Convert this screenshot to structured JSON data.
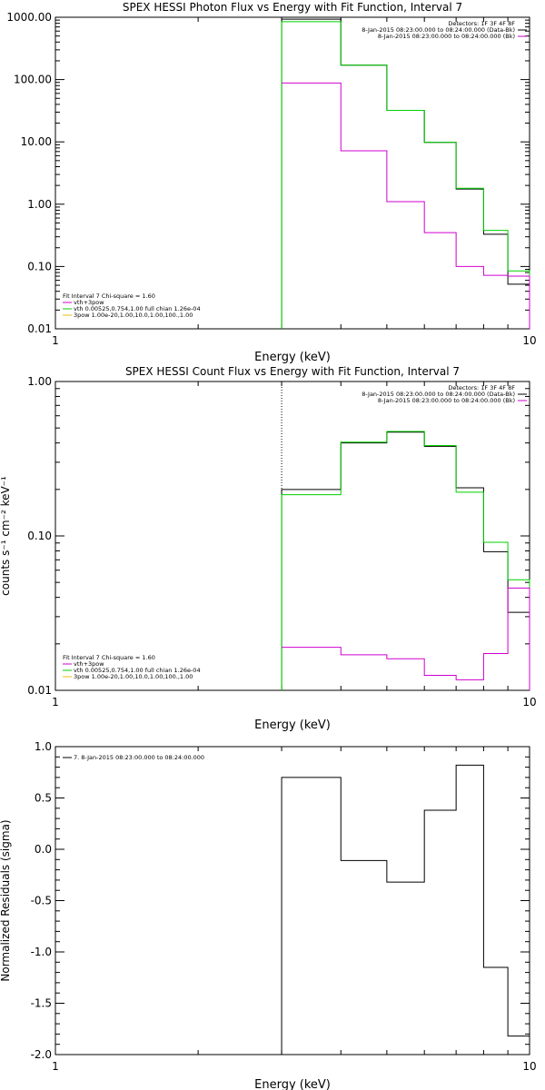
{
  "chart_data": [
    {
      "type": "line",
      "title": "SPEX HESSI Photon Flux vs Energy with Fit Function, Interval 7",
      "xlabel": "Energy (keV)",
      "ylabel": "",
      "xscale": "log",
      "yscale": "log",
      "xlim": [
        1,
        10
      ],
      "ylim": [
        0.01,
        1000
      ],
      "xticks": [
        {
          "value": 1,
          "label": "1"
        },
        {
          "value": 10,
          "label": "10"
        }
      ],
      "yticks": [
        {
          "value": 0.01,
          "label": "0.01"
        },
        {
          "value": 0.1,
          "label": "0.10"
        },
        {
          "value": 1,
          "label": "1.00"
        },
        {
          "value": 10,
          "label": "10.00"
        },
        {
          "value": 100,
          "label": "100.00"
        },
        {
          "value": 1000,
          "label": "1000.00"
        }
      ],
      "vline": {
        "x": 3.0,
        "style": "dotted"
      },
      "edges": [
        3.0,
        4.0,
        5.0,
        6.0,
        7.0,
        8.0,
        9.0,
        10.0
      ],
      "series": [
        {
          "color": "#000000",
          "values": [
            930,
            170,
            32,
            9.8,
            1.75,
            0.33,
            0.052
          ],
          "fill_down": true
        },
        {
          "color": "#00d000",
          "values": [
            850,
            170,
            32,
            9.8,
            1.8,
            0.38,
            0.085
          ],
          "fill_down": true
        },
        {
          "color": "#d000d0",
          "values": [
            88,
            7.2,
            1.1,
            0.35,
            0.1,
            0.072,
            0.07
          ],
          "fill_down": false
        }
      ],
      "legend_right": {
        "lines": [
          {
            "text": "Detectors: 1F 3F 4F 8F",
            "color": ""
          },
          {
            "text": "8-Jan-2015 08:23:00.000 to 08:24:00.000 (Data-Bk)",
            "color": "#000000"
          },
          {
            "text": "8-Jan-2015 08:23:00.000 to 08:24:00.000 (Bk)",
            "color": "#d000d0"
          }
        ]
      },
      "legend_left": {
        "lines": [
          {
            "text": "Fit Interval 7   Chi-square = 1.60",
            "color": ""
          },
          {
            "text": "vth+3pow",
            "color": "#d000d0"
          },
          {
            "text": "vth 0.00525,0.754,1.00   full chian 1.26e-04",
            "color": "#00d000"
          },
          {
            "text": "3pow 1.00e-20,1.00,10.0,1.00,100.,1.00",
            "color": "#e6c000"
          }
        ]
      }
    },
    {
      "type": "line",
      "title": "SPEX HESSI Count Flux vs Energy with Fit Function, Interval 7",
      "xlabel": "Energy (keV)",
      "ylabel": "counts s⁻¹ cm⁻² keV⁻¹",
      "xscale": "log",
      "yscale": "log",
      "xlim": [
        1,
        10
      ],
      "ylim": [
        0.01,
        1.0
      ],
      "xticks": [
        {
          "value": 1,
          "label": "1"
        },
        {
          "value": 10,
          "label": "10"
        }
      ],
      "yticks": [
        {
          "value": 0.01,
          "label": "0.01"
        },
        {
          "value": 0.1,
          "label": "0.10"
        },
        {
          "value": 1,
          "label": "1.00"
        }
      ],
      "vline": {
        "x": 3.0,
        "style": "dotted"
      },
      "edges": [
        3.0,
        4.0,
        5.0,
        6.0,
        7.0,
        8.0,
        9.0,
        10.0
      ],
      "series": [
        {
          "color": "#000000",
          "values": [
            0.2,
            0.4,
            0.47,
            0.38,
            0.205,
            0.079,
            0.032
          ],
          "fill_down": true
        },
        {
          "color": "#00d000",
          "values": [
            0.185,
            0.405,
            0.475,
            0.385,
            0.192,
            0.091,
            0.052
          ],
          "fill_down": true
        },
        {
          "color": "#d000d0",
          "values": [
            0.019,
            0.017,
            0.016,
            0.0125,
            0.0117,
            0.0173,
            0.046
          ],
          "fill_down": false
        }
      ],
      "legend_right": {
        "lines": [
          {
            "text": "Detectors: 1F 3F 4F 8F",
            "color": ""
          },
          {
            "text": "8-Jan-2015 08:23:00.000 to 08:24:00.000 (Data-Bk)",
            "color": "#000000"
          },
          {
            "text": "8-Jan-2015 08:23:00.000 to 08:24:00.000 (Bk)",
            "color": "#d000d0"
          }
        ]
      },
      "legend_left": {
        "lines": [
          {
            "text": "Fit Interval 7   Chi-square = 1.60",
            "color": ""
          },
          {
            "text": "vth+3pow",
            "color": "#d000d0"
          },
          {
            "text": "vth 0.00525,0.754,1.00   full chian 1.26e-04",
            "color": "#00d000"
          },
          {
            "text": "3pow 1.00e-20,1.00,10.0,1.00,100.,1.00",
            "color": "#e6c000"
          }
        ]
      }
    },
    {
      "type": "line",
      "title": "",
      "xlabel": "Energy (keV)",
      "ylabel": "Normalized Residuals (sigma)",
      "xscale": "log",
      "yscale": "linear",
      "xlim": [
        1,
        10
      ],
      "ylim": [
        -2.0,
        1.0
      ],
      "xticks": [
        {
          "value": 1,
          "label": "1"
        },
        {
          "value": 10,
          "label": "10"
        }
      ],
      "yticks": [
        {
          "value": 1.0,
          "label": "1.0"
        },
        {
          "value": 0.5,
          "label": "0.5"
        },
        {
          "value": 0.0,
          "label": "0.0"
        },
        {
          "value": -0.5,
          "label": "-0.5"
        },
        {
          "value": -1.0,
          "label": "-1.0"
        },
        {
          "value": -1.5,
          "label": "-1.5"
        },
        {
          "value": -2.0,
          "label": "-2.0"
        }
      ],
      "edges": [
        3.0,
        4.0,
        5.0,
        6.0,
        7.0,
        8.0,
        9.0,
        10.0
      ],
      "series": [
        {
          "color": "#000000",
          "values": [
            0.7,
            -0.11,
            -0.32,
            0.38,
            0.82,
            -1.15,
            -1.82
          ],
          "fill_down": true
        }
      ],
      "legend_left": {
        "lines": [
          {
            "text": "7.  8-Jan-2015 08:23:00.000 to 08:24:00.000",
            "color": "#000000"
          }
        ]
      }
    }
  ]
}
